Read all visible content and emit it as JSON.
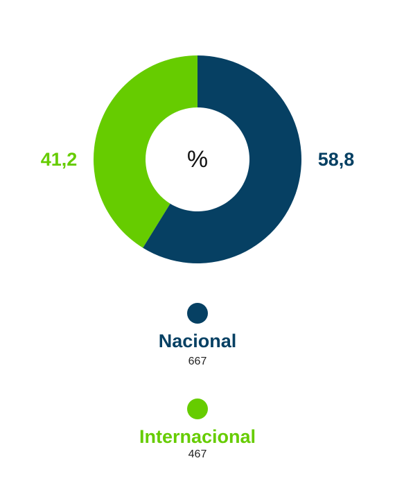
{
  "chart_data": {
    "type": "pie",
    "center_label": "%",
    "categories": [
      "Nacional",
      "Internacional"
    ],
    "values": [
      58.8,
      41.2
    ],
    "value_labels": [
      "58,8",
      "41,2"
    ],
    "colors": [
      "#064063",
      "#66cc00"
    ],
    "counts": [
      667,
      467
    ]
  }
}
